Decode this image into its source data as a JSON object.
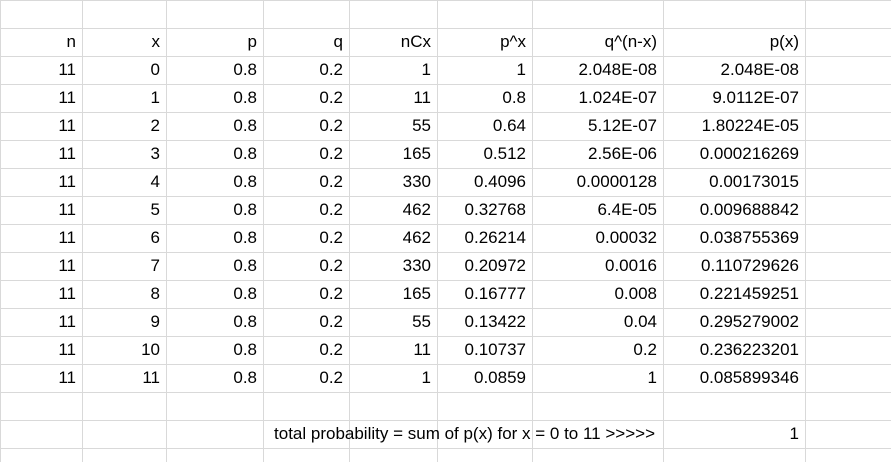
{
  "header": {
    "n": "n",
    "x": "x",
    "p": "p",
    "q": "q",
    "nCx": "nCx",
    "px": "p^x",
    "qnx": "q^(n-x)",
    "prob": "p(x)"
  },
  "rows": [
    {
      "n": "11",
      "x": "0",
      "p": "0.8",
      "q": "0.2",
      "nCx": "1",
      "px": "1",
      "qnx": "2.048E-08",
      "prob": "2.048E-08"
    },
    {
      "n": "11",
      "x": "1",
      "p": "0.8",
      "q": "0.2",
      "nCx": "11",
      "px": "0.8",
      "qnx": "1.024E-07",
      "prob": "9.0112E-07"
    },
    {
      "n": "11",
      "x": "2",
      "p": "0.8",
      "q": "0.2",
      "nCx": "55",
      "px": "0.64",
      "qnx": "5.12E-07",
      "prob": "1.80224E-05"
    },
    {
      "n": "11",
      "x": "3",
      "p": "0.8",
      "q": "0.2",
      "nCx": "165",
      "px": "0.512",
      "qnx": "2.56E-06",
      "prob": "0.000216269"
    },
    {
      "n": "11",
      "x": "4",
      "p": "0.8",
      "q": "0.2",
      "nCx": "330",
      "px": "0.4096",
      "qnx": "0.0000128",
      "prob": "0.00173015"
    },
    {
      "n": "11",
      "x": "5",
      "p": "0.8",
      "q": "0.2",
      "nCx": "462",
      "px": "0.32768",
      "qnx": "6.4E-05",
      "prob": "0.009688842"
    },
    {
      "n": "11",
      "x": "6",
      "p": "0.8",
      "q": "0.2",
      "nCx": "462",
      "px": "0.26214",
      "qnx": "0.00032",
      "prob": "0.038755369"
    },
    {
      "n": "11",
      "x": "7",
      "p": "0.8",
      "q": "0.2",
      "nCx": "330",
      "px": "0.20972",
      "qnx": "0.0016",
      "prob": "0.110729626"
    },
    {
      "n": "11",
      "x": "8",
      "p": "0.8",
      "q": "0.2",
      "nCx": "165",
      "px": "0.16777",
      "qnx": "0.008",
      "prob": "0.221459251"
    },
    {
      "n": "11",
      "x": "9",
      "p": "0.8",
      "q": "0.2",
      "nCx": "55",
      "px": "0.13422",
      "qnx": "0.04",
      "prob": "0.295279002"
    },
    {
      "n": "11",
      "x": "10",
      "p": "0.8",
      "q": "0.2",
      "nCx": "11",
      "px": "0.10737",
      "qnx": "0.2",
      "prob": "0.236223201"
    },
    {
      "n": "11",
      "x": "11",
      "p": "0.8",
      "q": "0.2",
      "nCx": "1",
      "px": "0.0859",
      "qnx": "1",
      "prob": "0.085899346"
    }
  ],
  "total": {
    "label": "total probability = sum of p(x) for x = 0 to 11 >>>>>",
    "value": "1"
  }
}
